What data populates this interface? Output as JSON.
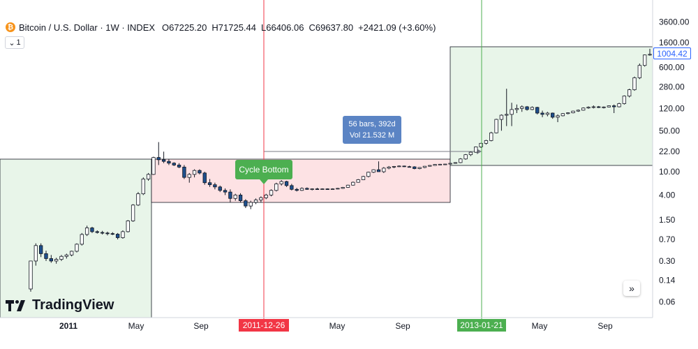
{
  "legend": {
    "symbol_icon": "bitcoin-icon",
    "title": "Bitcoin / U.S. Dollar · 1W · INDEX",
    "open": "O67225.20",
    "high": "H71725.44",
    "low": "L66406.06",
    "close": "C69637.80",
    "change": "+2421.09 (+3.60%)"
  },
  "interval_button": {
    "label": "1",
    "icon": "chevron-down-icon"
  },
  "logo": {
    "text": "TradingView",
    "icon": "tradingview-logo-icon"
  },
  "scroll_button": {
    "icon": "double-chevron-right-icon"
  },
  "last_price": "1004.42",
  "annotations": {
    "measure_bars": "56 bars, 392d",
    "measure_vol": "Vol 21.532 M",
    "cycle_label": "Cycle Bottom",
    "date_red": "2011-12-26",
    "date_green": "2013-01-21"
  },
  "colors": {
    "up": "#ffffff",
    "down": "#1e4f8c",
    "wick": "#131722",
    "red_line": "#f23645",
    "green_line": "#4caf50",
    "green_zone": "#e8f5e9",
    "red_zone": "#fde2e4",
    "price_tag": "#2962ff"
  },
  "chart_data": {
    "type": "candlestick",
    "scale": "log",
    "y_ticks": [
      "3600.00",
      "1600.00",
      "600.00",
      "280.00",
      "120.00",
      "50.00",
      "22.00",
      "10.00",
      "4.00",
      "1.50",
      "0.70",
      "0.30",
      "0.14",
      "0.06"
    ],
    "x_ticks": [
      "2011",
      "May",
      "Sep",
      "2011-12-26",
      "May",
      "Sep",
      "2013-01-21",
      "May",
      "Sep"
    ],
    "ohlc_weekly_approx": [
      [
        0.1,
        0.3,
        0.09,
        0.3
      ],
      [
        0.3,
        0.6,
        0.25,
        0.55
      ],
      [
        0.55,
        0.6,
        0.35,
        0.4
      ],
      [
        0.4,
        0.45,
        0.3,
        0.33
      ],
      [
        0.33,
        0.38,
        0.28,
        0.3
      ],
      [
        0.3,
        0.34,
        0.27,
        0.32
      ],
      [
        0.32,
        0.38,
        0.3,
        0.36
      ],
      [
        0.36,
        0.4,
        0.33,
        0.38
      ],
      [
        0.38,
        0.45,
        0.36,
        0.44
      ],
      [
        0.44,
        0.6,
        0.42,
        0.58
      ],
      [
        0.58,
        0.9,
        0.55,
        0.85
      ],
      [
        0.85,
        1.2,
        0.8,
        1.1
      ],
      [
        1.1,
        1.15,
        0.9,
        0.95
      ],
      [
        0.95,
        1.0,
        0.88,
        0.92
      ],
      [
        0.92,
        0.98,
        0.85,
        0.9
      ],
      [
        0.9,
        0.95,
        0.82,
        0.88
      ],
      [
        0.88,
        0.93,
        0.83,
        0.86
      ],
      [
        0.86,
        0.9,
        0.7,
        0.75
      ],
      [
        0.75,
        1.0,
        0.72,
        0.95
      ],
      [
        0.95,
        1.5,
        0.92,
        1.45
      ],
      [
        1.45,
        2.8,
        1.4,
        2.7
      ],
      [
        2.7,
        4.5,
        2.6,
        4.2
      ],
      [
        4.2,
        8.0,
        4.0,
        7.5
      ],
      [
        7.5,
        9.5,
        7.0,
        9.0
      ],
      [
        9.0,
        18.0,
        8.8,
        17.5
      ],
      [
        17.5,
        32.0,
        13.0,
        16.0
      ],
      [
        16.0,
        22.0,
        14.0,
        15.0
      ],
      [
        15.0,
        16.5,
        13.0,
        14.0
      ],
      [
        14.0,
        14.5,
        12.5,
        13.0
      ],
      [
        13.0,
        14.0,
        11.5,
        12.0
      ],
      [
        12.0,
        13.0,
        7.5,
        8.0
      ],
      [
        8.0,
        9.5,
        6.5,
        9.0
      ],
      [
        9.0,
        11.0,
        8.0,
        10.5
      ],
      [
        10.5,
        11.0,
        9.0,
        9.5
      ],
      [
        9.5,
        10.0,
        6.0,
        6.5
      ],
      [
        6.5,
        7.5,
        5.5,
        6.0
      ],
      [
        6.0,
        6.5,
        5.0,
        5.5
      ],
      [
        5.5,
        5.8,
        4.5,
        4.8
      ],
      [
        4.8,
        5.2,
        4.0,
        4.5
      ],
      [
        4.5,
        5.0,
        3.0,
        3.5
      ],
      [
        3.5,
        4.2,
        3.2,
        4.0
      ],
      [
        4.0,
        4.3,
        3.0,
        3.2
      ],
      [
        3.2,
        3.4,
        2.4,
        2.6
      ],
      [
        2.6,
        3.2,
        2.3,
        3.0
      ],
      [
        3.0,
        3.5,
        2.8,
        3.3
      ],
      [
        3.3,
        3.8,
        3.0,
        3.6
      ],
      [
        3.6,
        4.2,
        3.4,
        4.0
      ],
      [
        4.0,
        5.0,
        3.8,
        4.8
      ],
      [
        4.8,
        6.5,
        4.6,
        6.2
      ],
      [
        6.2,
        7.2,
        5.8,
        6.8
      ],
      [
        6.8,
        7.0,
        5.5,
        5.8
      ],
      [
        5.8,
        6.2,
        4.8,
        5.0
      ],
      [
        5.0,
        5.3,
        4.6,
        4.8
      ],
      [
        4.8,
        5.4,
        4.7,
        5.2
      ],
      [
        5.2,
        5.4,
        4.9,
        5.0
      ],
      [
        5.0,
        5.2,
        4.8,
        5.1
      ],
      [
        5.1,
        5.3,
        4.9,
        5.0
      ],
      [
        5.0,
        5.2,
        4.9,
        5.1
      ],
      [
        5.1,
        5.2,
        4.95,
        5.05
      ],
      [
        5.05,
        5.2,
        4.9,
        5.1
      ],
      [
        5.1,
        5.3,
        5.0,
        5.2
      ],
      [
        5.2,
        5.5,
        5.1,
        5.4
      ],
      [
        5.4,
        6.0,
        5.3,
        5.9
      ],
      [
        5.9,
        6.8,
        5.8,
        6.6
      ],
      [
        6.6,
        7.5,
        6.5,
        7.3
      ],
      [
        7.3,
        8.5,
        7.2,
        8.3
      ],
      [
        8.3,
        10.0,
        8.0,
        9.8
      ],
      [
        9.8,
        11.0,
        9.5,
        10.8
      ],
      [
        10.8,
        15.0,
        10.5,
        10.0
      ],
      [
        10.0,
        12.0,
        9.5,
        11.5
      ],
      [
        11.5,
        12.5,
        11.0,
        12.0
      ],
      [
        12.0,
        12.5,
        11.5,
        12.3
      ],
      [
        12.3,
        12.8,
        12.0,
        12.5
      ],
      [
        12.5,
        12.7,
        12.0,
        12.2
      ],
      [
        12.2,
        12.6,
        11.8,
        12.1
      ],
      [
        12.1,
        12.4,
        11.0,
        11.3
      ],
      [
        11.3,
        12.0,
        11.0,
        11.8
      ],
      [
        11.8,
        12.5,
        11.5,
        12.4
      ],
      [
        12.4,
        13.0,
        12.2,
        12.8
      ],
      [
        12.8,
        13.5,
        12.6,
        13.3
      ],
      [
        13.3,
        13.6,
        13.0,
        13.4
      ],
      [
        13.4,
        13.6,
        13.1,
        13.5
      ],
      [
        13.5,
        14.0,
        13.3,
        13.9
      ],
      [
        13.9,
        14.5,
        13.7,
        14.3
      ],
      [
        14.3,
        17.0,
        14.0,
        16.5
      ],
      [
        16.5,
        20.0,
        16.0,
        19.5
      ],
      [
        19.5,
        22.0,
        18.5,
        21.5
      ],
      [
        21.5,
        27.0,
        21.0,
        26.5
      ],
      [
        26.5,
        31.0,
        25.5,
        30.5
      ],
      [
        30.5,
        35.0,
        29.0,
        34.0
      ],
      [
        34.0,
        48.0,
        33.0,
        46.0
      ],
      [
        46.0,
        80.0,
        45.0,
        78.0
      ],
      [
        78.0,
        95.0,
        50.0,
        92.0
      ],
      [
        92.0,
        260.0,
        60.0,
        95.0
      ],
      [
        95.0,
        150.0,
        60.0,
        115.0
      ],
      [
        115.0,
        140.0,
        100.0,
        120.0
      ],
      [
        120.0,
        135.0,
        105.0,
        128.0
      ],
      [
        128.0,
        132.0,
        110.0,
        115.0
      ],
      [
        115.0,
        130.0,
        112.0,
        125.0
      ],
      [
        125.0,
        128.0,
        95.0,
        100.0
      ],
      [
        100.0,
        110.0,
        85.0,
        95.0
      ],
      [
        95.0,
        105.0,
        88.0,
        100.0
      ],
      [
        100.0,
        102.0,
        80.0,
        85.0
      ],
      [
        85.0,
        95.0,
        70.0,
        90.0
      ],
      [
        90.0,
        100.0,
        88.0,
        98.0
      ],
      [
        98.0,
        103.0,
        95.0,
        101.0
      ],
      [
        101.0,
        110.0,
        99.0,
        108.0
      ],
      [
        108.0,
        115.0,
        105.0,
        112.0
      ],
      [
        112.0,
        125.0,
        110.0,
        122.0
      ],
      [
        122.0,
        130.0,
        118.0,
        126.0
      ],
      [
        126.0,
        135.0,
        120.0,
        128.0
      ],
      [
        128.0,
        132.0,
        122.0,
        125.0
      ],
      [
        125.0,
        130.0,
        120.0,
        127.0
      ],
      [
        127.0,
        135.0,
        125.0,
        133.0
      ],
      [
        133.0,
        140.0,
        100.0,
        128.0
      ],
      [
        128.0,
        150.0,
        125.0,
        145.0
      ],
      [
        145.0,
        200.0,
        140.0,
        195.0
      ],
      [
        195.0,
        260.0,
        185.0,
        250.0
      ],
      [
        250.0,
        420.0,
        240.0,
        400.0
      ],
      [
        400.0,
        700.0,
        380.0,
        650.0
      ],
      [
        650.0,
        1000.0,
        620.0,
        980.0
      ],
      [
        980.0,
        1250.0,
        950.0,
        1004.42
      ]
    ],
    "measure": {
      "bars": 56,
      "days": 392,
      "volume": "21.532 M"
    }
  }
}
